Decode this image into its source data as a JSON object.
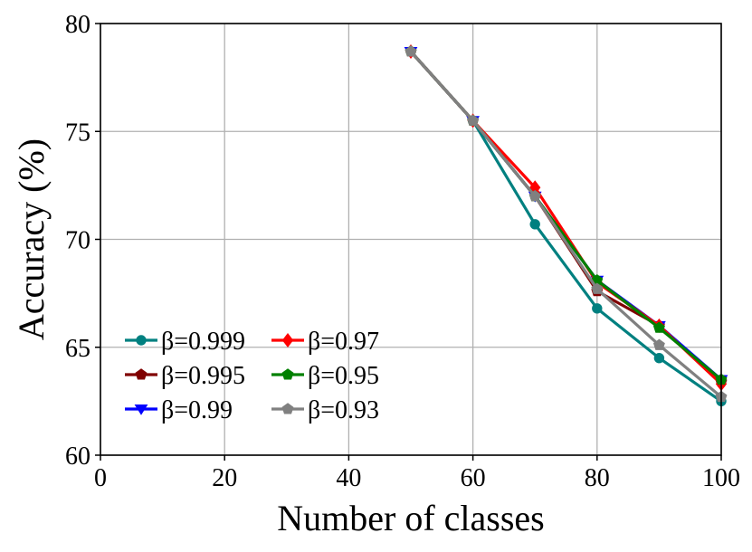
{
  "chart_data": {
    "type": "line",
    "xlabel": "Number of classes",
    "ylabel": "Accuracy (%)",
    "xlim": [
      0,
      100
    ],
    "ylim": [
      60,
      80
    ],
    "xticks": [
      0,
      20,
      40,
      60,
      80,
      100
    ],
    "yticks": [
      60,
      65,
      70,
      75,
      80
    ],
    "grid": true,
    "legend_position": "lower-left",
    "legend_columns": 2,
    "x": [
      50,
      60,
      70,
      80,
      90,
      100
    ],
    "series": [
      {
        "name": "β=0.999",
        "color": "#008080",
        "marker": "circle",
        "values": [
          78.7,
          75.5,
          70.7,
          66.8,
          64.5,
          62.5
        ]
      },
      {
        "name": "β=0.995",
        "color": "#800000",
        "marker": "pentagon",
        "values": [
          78.7,
          75.5,
          72.0,
          67.6,
          66.0,
          63.4
        ]
      },
      {
        "name": "β=0.99",
        "color": "#0000ff",
        "marker": "triangle-down",
        "values": [
          78.7,
          75.5,
          72.0,
          68.1,
          66.0,
          63.5
        ]
      },
      {
        "name": "β=0.97",
        "color": "#ff0000",
        "marker": "diamond",
        "values": [
          78.7,
          75.5,
          72.4,
          68.0,
          66.0,
          63.3
        ]
      },
      {
        "name": "β=0.95",
        "color": "#008000",
        "marker": "pentagon",
        "values": [
          78.7,
          75.5,
          72.0,
          68.1,
          65.9,
          63.5
        ]
      },
      {
        "name": "β=0.93",
        "color": "#808080",
        "marker": "pentagon",
        "values": [
          78.7,
          75.5,
          72.0,
          67.7,
          65.1,
          62.7
        ]
      }
    ]
  }
}
